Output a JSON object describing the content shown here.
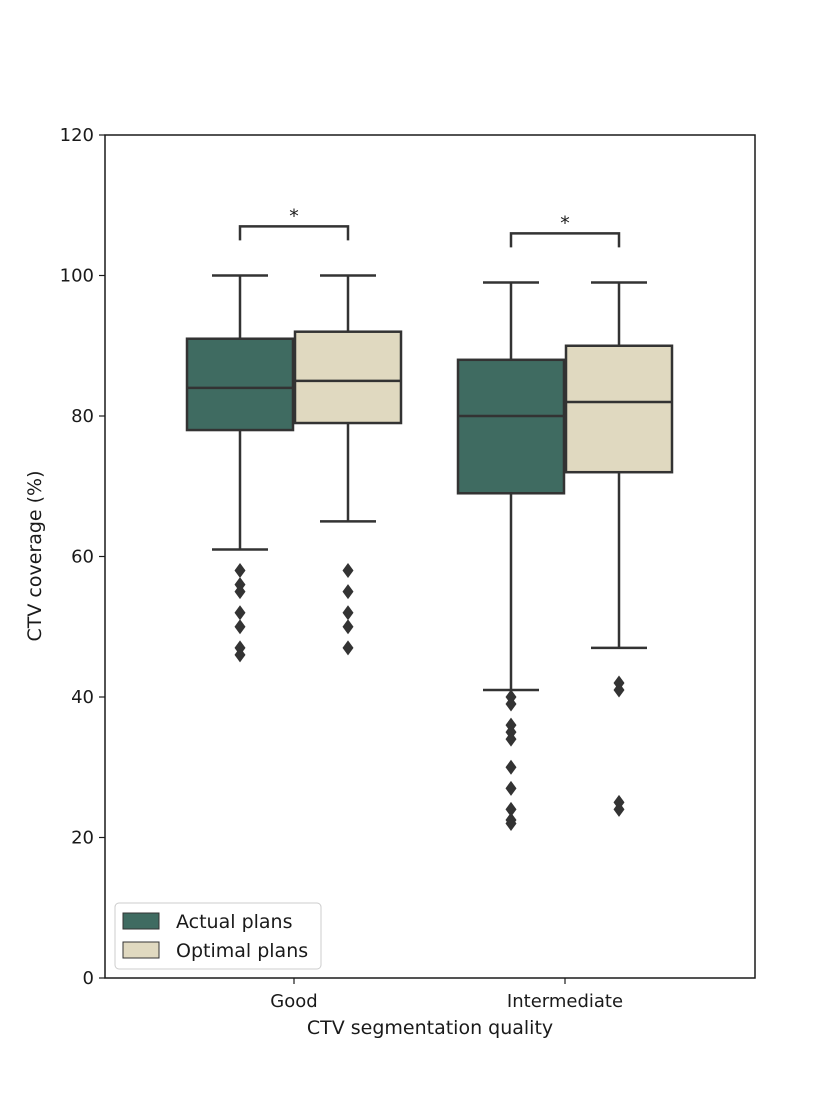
{
  "chart_data": {
    "type": "box",
    "xlabel": "CTV segmentation quality",
    "ylabel": "CTV coverage (%)",
    "ylim": [
      0,
      120
    ],
    "yticks": [
      0,
      20,
      40,
      60,
      80,
      100,
      120
    ],
    "categories": [
      "Good",
      "Intermediate"
    ],
    "legend_position": "lower-left",
    "series": [
      {
        "name": "Actual plans",
        "color": "#3f6b61",
        "boxes": [
          {
            "category": "Good",
            "whisker_low": 61,
            "q1": 78,
            "median": 84,
            "q3": 91,
            "whisker_high": 100,
            "outliers": [
              58,
              56,
              55,
              52,
              50,
              47,
              46
            ]
          },
          {
            "category": "Intermediate",
            "whisker_low": 41,
            "q1": 69,
            "median": 80,
            "q3": 88,
            "whisker_high": 99,
            "outliers": [
              40,
              39,
              36,
              35,
              34,
              30,
              27,
              24,
              22.5,
              22
            ]
          }
        ]
      },
      {
        "name": "Optimal plans",
        "color": "#e0d9c0",
        "boxes": [
          {
            "category": "Good",
            "whisker_low": 65,
            "q1": 79,
            "median": 85,
            "q3": 92,
            "whisker_high": 100,
            "outliers": [
              58,
              55,
              52,
              50,
              47
            ]
          },
          {
            "category": "Intermediate",
            "whisker_low": 47,
            "q1": 72,
            "median": 82,
            "q3": 90,
            "whisker_high": 99,
            "outliers": [
              42,
              41,
              25,
              24
            ]
          }
        ]
      }
    ],
    "annotations": [
      {
        "category": "Good",
        "text": "*",
        "y": 107
      },
      {
        "category": "Intermediate",
        "text": "*",
        "y": 106
      }
    ]
  }
}
